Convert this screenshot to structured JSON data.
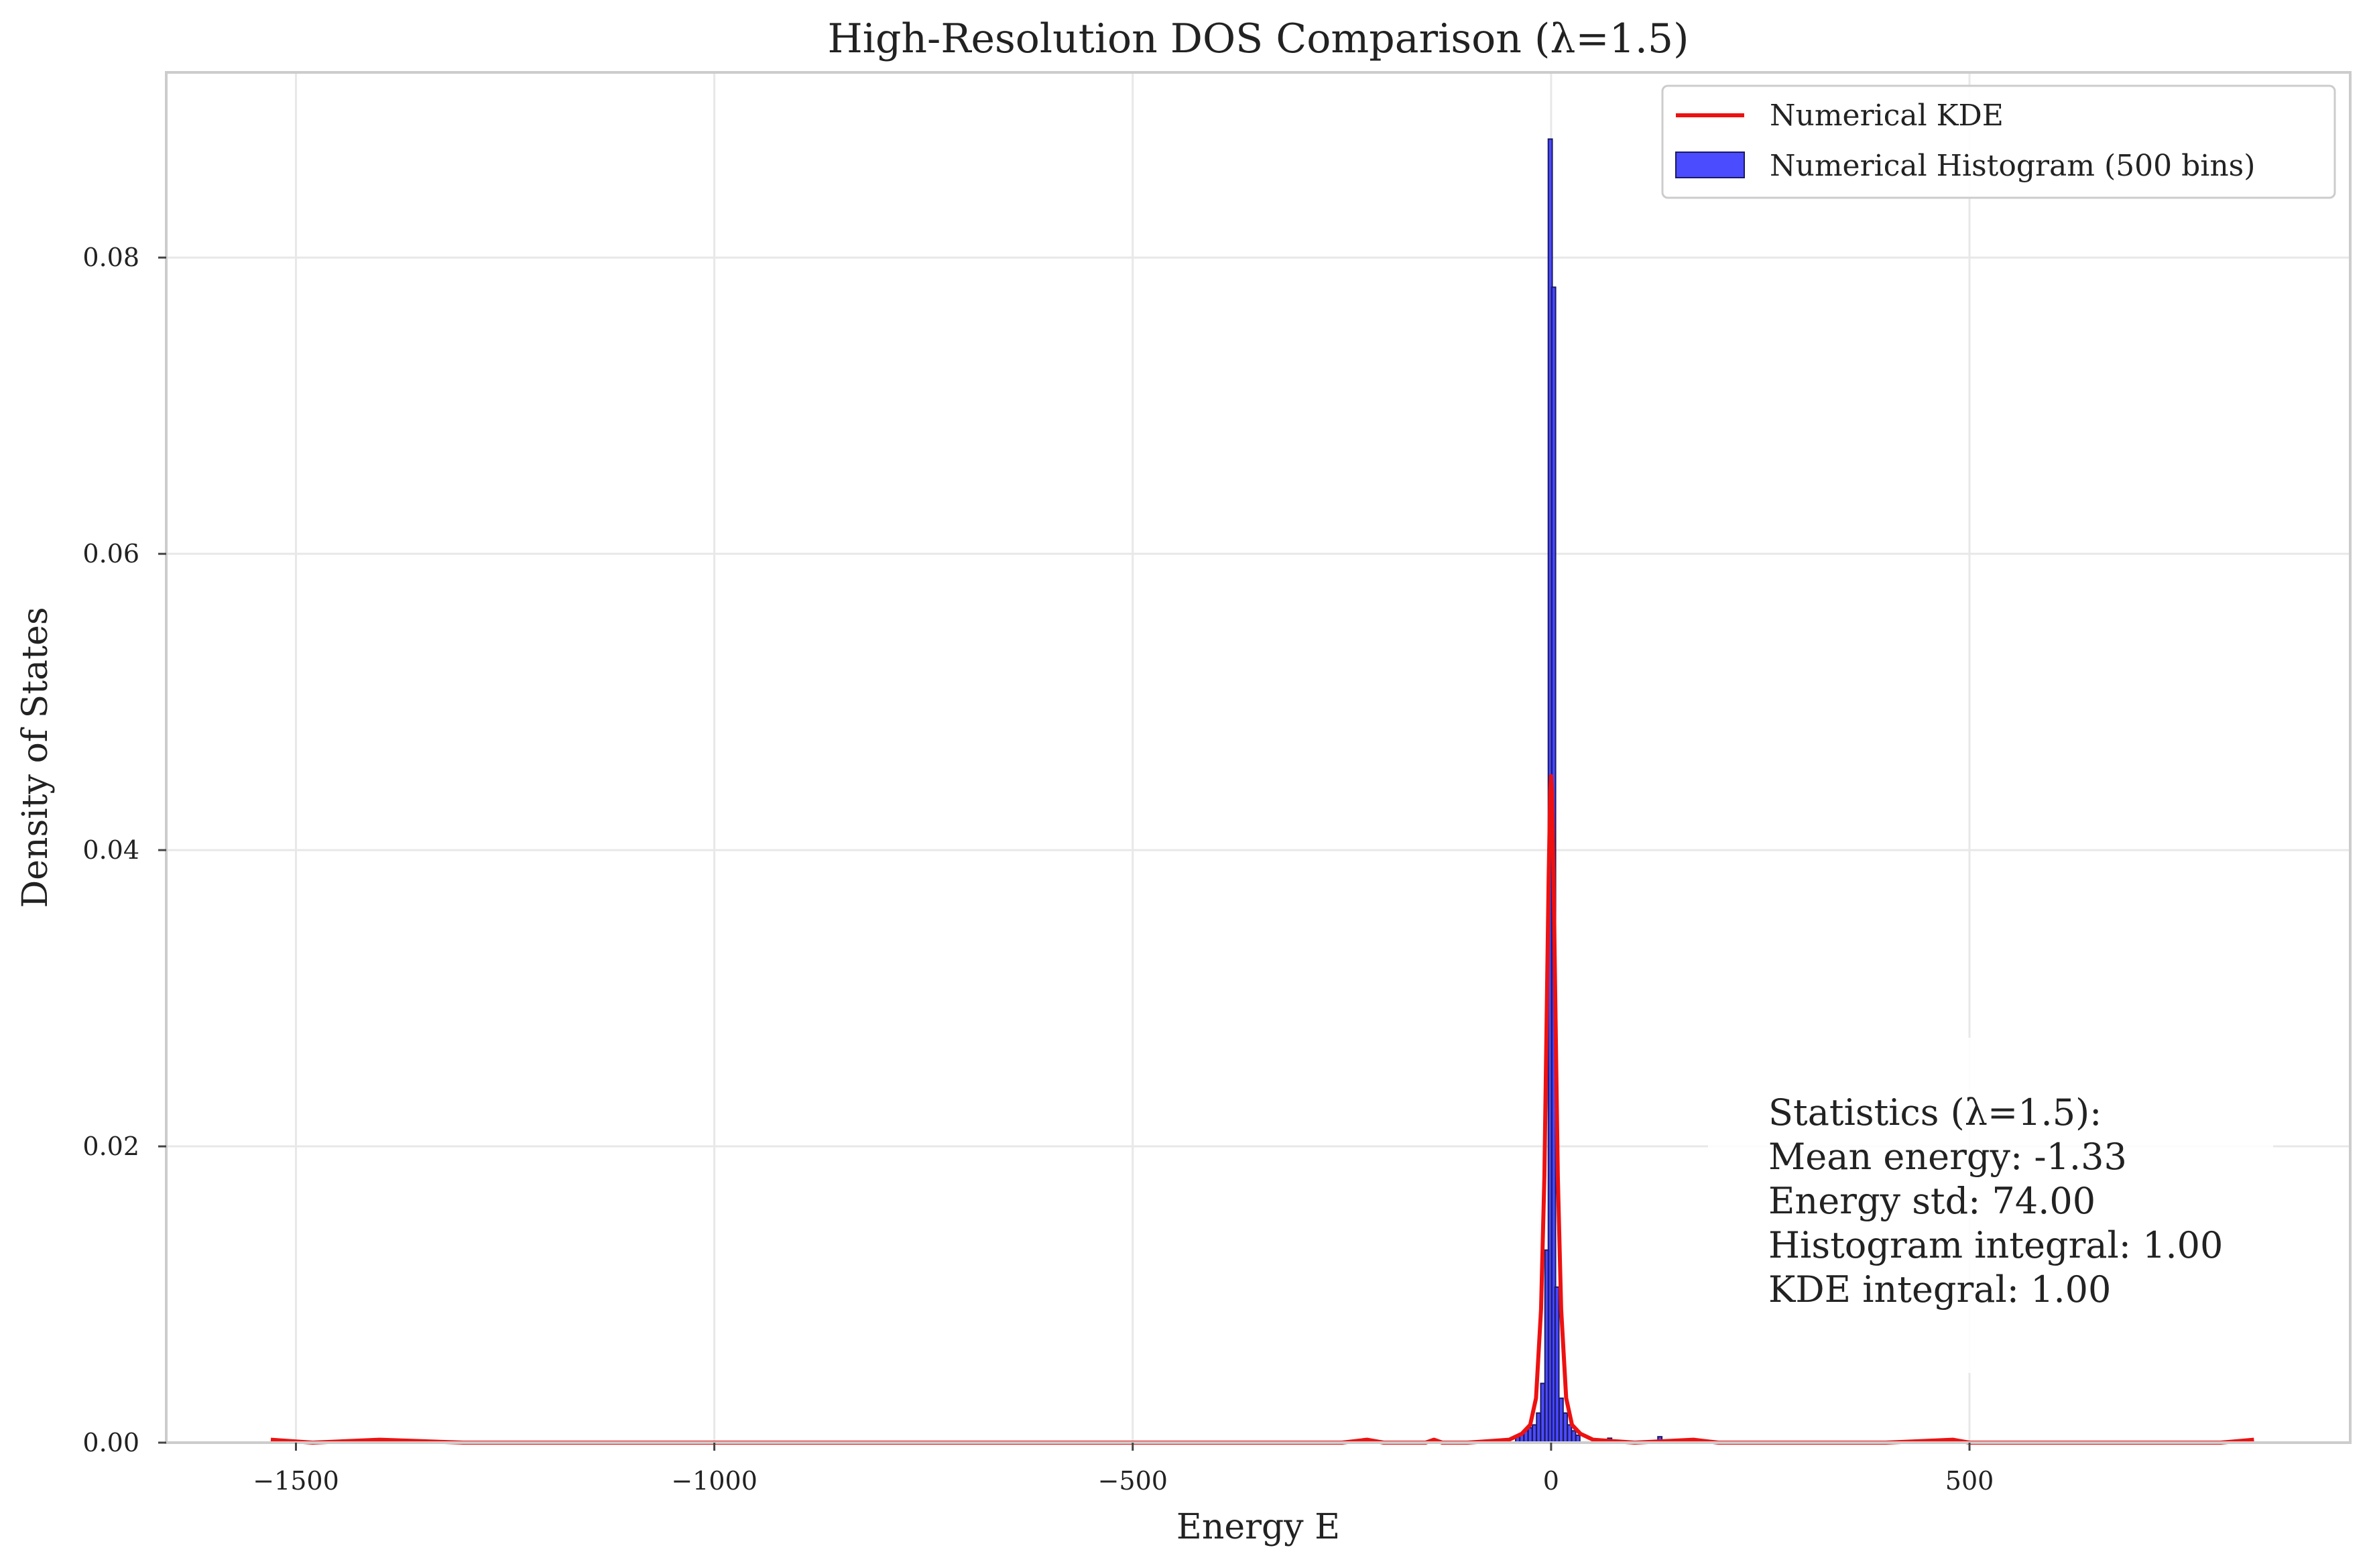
{
  "chart_data": {
    "type": "bar",
    "title": "High-Resolution DOS Comparison (λ=1.5)",
    "xlabel": "Energy E",
    "ylabel": "Density of States",
    "xlim": [
      -1655,
      955
    ],
    "ylim": [
      0,
      0.0925
    ],
    "grid": true,
    "x_ticks": [
      -1500,
      -1000,
      -500,
      0,
      500
    ],
    "x_tick_labels": [
      "−1500",
      "−1000",
      "−500",
      "0",
      "500"
    ],
    "y_ticks": [
      0.0,
      0.02,
      0.04,
      0.06,
      0.08
    ],
    "y_tick_labels": [
      "0.00",
      "0.02",
      "0.04",
      "0.06",
      "0.08"
    ],
    "legend": {
      "position": "top-right",
      "entries": [
        {
          "label": "Numerical KDE",
          "kind": "line",
          "color": "#ee1111"
        },
        {
          "label": "Numerical Histogram (500 bins)",
          "kind": "patch",
          "color": "#3333ff"
        }
      ]
    },
    "series": [
      {
        "name": "Numerical Histogram (500 bins)",
        "kind": "histogram",
        "color": "#3333ff",
        "edge_color": "#1a1a66",
        "bin_width": 4.7,
        "bins": [
          {
            "x": -40,
            "y": 0.0004
          },
          {
            "x": -35,
            "y": 0.0006
          },
          {
            "x": -30,
            "y": 0.0008
          },
          {
            "x": -25,
            "y": 0.001
          },
          {
            "x": -20,
            "y": 0.0012
          },
          {
            "x": -15,
            "y": 0.002
          },
          {
            "x": -10,
            "y": 0.004
          },
          {
            "x": -5,
            "y": 0.013
          },
          {
            "x": -1,
            "y": 0.088
          },
          {
            "x": 3,
            "y": 0.078
          },
          {
            "x": 7,
            "y": 0.0105
          },
          {
            "x": 12,
            "y": 0.003
          },
          {
            "x": 17,
            "y": 0.002
          },
          {
            "x": 22,
            "y": 0.0012
          },
          {
            "x": 27,
            "y": 0.0008
          },
          {
            "x": 32,
            "y": 0.0005
          },
          {
            "x": 70,
            "y": 0.0003
          },
          {
            "x": 130,
            "y": 0.0004
          }
        ]
      },
      {
        "name": "Numerical KDE",
        "kind": "line",
        "color": "#ee1111",
        "x": [
          -1530,
          -1480,
          -1400,
          -1300,
          -700,
          -250,
          -220,
          -200,
          -150,
          -140,
          -130,
          -100,
          -50,
          -35,
          -25,
          -18,
          -12,
          -8,
          -5,
          -3,
          -1,
          0,
          1,
          3,
          5,
          8,
          12,
          18,
          25,
          35,
          50,
          100,
          170,
          200,
          400,
          480,
          500,
          800,
          840
        ],
        "y": [
          0.0002,
          0.0,
          0.0002,
          0.0,
          0.0,
          0.0,
          0.0002,
          0.0,
          0.0,
          0.0002,
          0.0,
          0.0,
          0.0002,
          0.0006,
          0.0012,
          0.003,
          0.009,
          0.018,
          0.03,
          0.038,
          0.044,
          0.045,
          0.044,
          0.038,
          0.03,
          0.018,
          0.009,
          0.003,
          0.0012,
          0.0006,
          0.0002,
          0.0,
          0.0002,
          0.0,
          0.0,
          0.0002,
          0.0,
          0.0,
          0.0002
        ]
      }
    ],
    "annotation": {
      "lines": [
        "Statistics (λ=1.5):",
        "Mean energy: -1.33",
        "Energy std: 74.00",
        "Histogram integral: 1.00",
        "KDE integral: 1.00"
      ]
    }
  }
}
